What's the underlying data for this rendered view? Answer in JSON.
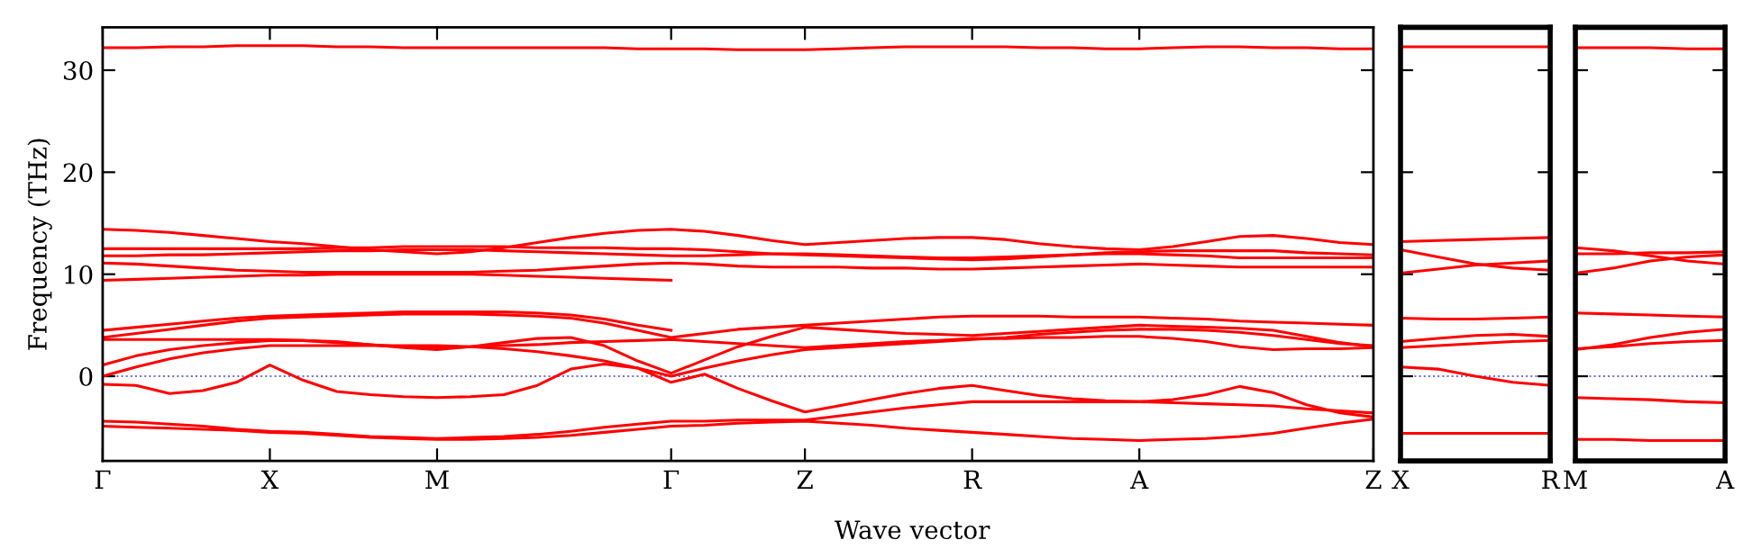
{
  "chart_data": [
    {
      "type": "line",
      "xlabel": "Wave vector",
      "ylabel": "Frequency (THz)",
      "ylim": [
        -8.3,
        34.2
      ],
      "categories": [
        "Γ",
        null,
        null,
        null,
        null,
        "X",
        null,
        null,
        null,
        null,
        "M",
        null,
        null,
        null,
        null,
        null,
        null,
        "Γ",
        null,
        null,
        null,
        "Z",
        null,
        null,
        null,
        null,
        "R",
        null,
        null,
        null,
        null,
        "A",
        null,
        null,
        null,
        null,
        null,
        null,
        "Z"
      ],
      "yticks": [
        0,
        10,
        20,
        30
      ],
      "ref_lines": [
        {
          "axis": "y",
          "value": 0,
          "color": "#6a6ae0",
          "line_style": "dotted"
        }
      ],
      "series": [
        {
          "color": "#ff0000",
          "values": [
            32.2,
            32.2,
            32.3,
            32.3,
            32.4,
            32.4,
            32.4,
            32.3,
            32.3,
            32.2,
            32.2,
            32.2,
            32.2,
            32.2,
            32.2,
            32.2,
            32.1,
            32.1,
            32.1,
            32.0,
            32.0,
            32.0,
            32.1,
            32.2,
            32.3,
            32.3,
            32.3,
            32.3,
            32.2,
            32.2,
            32.1,
            32.1,
            32.2,
            32.3,
            32.3,
            32.2,
            32.2,
            32.1,
            32.1
          ]
        },
        {
          "color": "#ff0000",
          "values": [
            14.4,
            14.3,
            14.1,
            13.8,
            13.5,
            13.2,
            13.0,
            12.7,
            12.4,
            12.2,
            12.0,
            12.2,
            12.6,
            13.1,
            13.6,
            14.0,
            14.3,
            14.4,
            14.2,
            13.8,
            13.3,
            12.9,
            13.1,
            13.3,
            13.5,
            13.6,
            13.6,
            13.4,
            13.0,
            12.7,
            12.5,
            12.4,
            12.7,
            13.2,
            13.7,
            13.8,
            13.5,
            13.1,
            12.9
          ]
        },
        {
          "color": "#ff0000",
          "values": [
            12.5,
            12.5,
            12.5,
            12.5,
            12.5,
            12.5,
            12.5,
            12.6,
            12.6,
            12.7,
            12.7,
            12.7,
            12.7,
            12.6,
            12.6,
            12.6,
            12.5,
            12.5,
            12.4,
            12.2,
            12.0,
            11.9,
            11.8,
            11.7,
            11.6,
            11.5,
            11.4,
            11.5,
            11.7,
            11.9,
            12.1,
            12.2,
            12.3,
            12.3,
            12.3,
            12.3,
            12.1,
            12.0,
            11.9
          ]
        },
        {
          "color": "#ff0000",
          "values": [
            11.8,
            11.8,
            11.9,
            11.9,
            12.0,
            12.1,
            12.2,
            12.3,
            12.3,
            12.4,
            12.4,
            12.4,
            12.3,
            12.2,
            12.1,
            12.0,
            11.9,
            11.8,
            11.8,
            11.9,
            12.0,
            12.0,
            11.9,
            11.8,
            11.7,
            11.6,
            11.6,
            11.7,
            11.8,
            11.9,
            12.0,
            12.0,
            11.9,
            11.8,
            11.6,
            11.6,
            11.6,
            11.6,
            11.6
          ]
        },
        {
          "color": "#ff0000",
          "values": [
            11.1,
            11.0,
            10.8,
            10.6,
            10.4,
            10.3,
            10.2,
            10.2,
            10.2,
            10.2,
            10.2,
            10.2,
            10.3,
            10.4,
            10.6,
            10.8,
            11.0,
            11.1,
            11.0,
            10.8,
            10.7,
            10.7,
            10.7,
            10.6,
            10.6,
            10.5,
            10.5,
            10.6,
            10.7,
            10.8,
            10.9,
            11.0,
            10.9,
            10.8,
            10.7,
            10.7,
            10.7,
            10.7,
            10.7
          ]
        },
        {
          "color": "#ff0000",
          "values": [
            9.4,
            9.5,
            9.6,
            9.7,
            9.8,
            9.9,
            9.9,
            10.0,
            10.0,
            10.0,
            10.0,
            10.0,
            9.9,
            9.8,
            9.7,
            9.6,
            9.5,
            9.4,
            null,
            null,
            null,
            null,
            null,
            null,
            null,
            null,
            null,
            null,
            null,
            null,
            null,
            null,
            null,
            null,
            null,
            null,
            null,
            null,
            null
          ]
        },
        {
          "color": "#ff0000",
          "values": [
            4.5,
            4.8,
            5.1,
            5.4,
            5.7,
            5.9,
            6.0,
            6.1,
            6.2,
            6.3,
            6.3,
            6.3,
            6.3,
            6.2,
            6.0,
            5.6,
            5.0,
            4.5,
            null,
            null,
            null,
            null,
            null,
            null,
            null,
            null,
            null,
            null,
            null,
            null,
            null,
            null,
            null,
            null,
            null,
            null,
            null,
            null,
            null
          ]
        },
        {
          "color": "#ff0000",
          "values": [
            3.8,
            4.2,
            4.6,
            5.0,
            5.4,
            5.7,
            5.8,
            5.9,
            6.0,
            6.1,
            6.1,
            6.1,
            6.0,
            5.9,
            5.7,
            5.2,
            4.5,
            3.8,
            4.2,
            4.6,
            4.8,
            5.0,
            5.2,
            5.4,
            5.6,
            5.8,
            5.9,
            5.9,
            5.9,
            5.8,
            5.8,
            5.8,
            5.7,
            5.6,
            5.4,
            5.3,
            5.2,
            5.1,
            5.0
          ]
        },
        {
          "color": "#ff0000",
          "values": [
            3.6,
            3.6,
            3.6,
            3.6,
            3.6,
            3.6,
            3.5,
            3.3,
            3.1,
            2.9,
            2.8,
            2.9,
            3.0,
            3.1,
            3.3,
            3.4,
            3.5,
            3.6,
            3.4,
            3.2,
            3.0,
            2.8,
            3.0,
            3.2,
            3.4,
            3.5,
            3.7,
            3.7,
            3.8,
            3.8,
            3.9,
            3.9,
            3.7,
            3.4,
            2.9,
            2.6,
            2.7,
            2.7,
            2.8
          ]
        },
        {
          "color": "#ff0000",
          "values": [
            1.1,
            2.0,
            2.6,
            3.0,
            3.3,
            3.5,
            3.5,
            3.4,
            3.1,
            2.8,
            2.6,
            2.9,
            3.3,
            3.7,
            3.8,
            3.0,
            1.5,
            0.3,
            1.6,
            2.9,
            3.9,
            4.8,
            4.6,
            4.4,
            4.2,
            4.1,
            4.0,
            4.2,
            4.4,
            4.6,
            4.8,
            5.0,
            4.9,
            4.8,
            4.7,
            4.5,
            3.9,
            3.3,
            2.9
          ]
        },
        {
          "color": "#ff0000",
          "values": [
            0.0,
            0.9,
            1.7,
            2.3,
            2.7,
            3.0,
            3.0,
            3.0,
            3.0,
            3.0,
            3.0,
            2.9,
            2.7,
            2.4,
            2.0,
            1.5,
            0.8,
            0.0,
            0.8,
            1.5,
            2.1,
            2.6,
            2.8,
            3.0,
            3.2,
            3.4,
            3.6,
            3.8,
            4.1,
            4.3,
            4.5,
            4.6,
            4.6,
            4.5,
            4.3,
            4.0,
            3.6,
            3.2,
            3.0
          ]
        },
        {
          "color": "#ff0000",
          "values": [
            -0.8,
            -0.9,
            -1.7,
            -1.4,
            -0.6,
            1.1,
            -0.4,
            -1.5,
            -1.8,
            -2.0,
            -2.1,
            -2.0,
            -1.8,
            -0.9,
            0.7,
            1.2,
            0.8,
            -0.6,
            0.2,
            -1.2,
            -2.4,
            -3.5,
            -2.9,
            -2.3,
            -1.7,
            -1.2,
            -0.9,
            -1.4,
            -1.9,
            -2.2,
            -2.4,
            -2.5,
            -2.3,
            -1.8,
            -1.0,
            -1.6,
            -2.8,
            -3.6,
            -4.0
          ]
        },
        {
          "color": "#ff0000",
          "values": [
            -4.4,
            -4.5,
            -4.7,
            -4.9,
            -5.2,
            -5.4,
            -5.5,
            -5.7,
            -5.9,
            -6.0,
            -6.1,
            -6.0,
            -5.9,
            -5.7,
            -5.4,
            -5.0,
            -4.7,
            -4.4,
            -4.4,
            -4.3,
            -4.3,
            -4.3,
            -3.9,
            -3.5,
            -3.1,
            -2.8,
            -2.5,
            -2.5,
            -2.5,
            -2.5,
            -2.5,
            -2.5,
            -2.6,
            -2.7,
            -2.8,
            -2.9,
            -3.2,
            -3.4,
            -3.6
          ]
        },
        {
          "color": "#ff0000",
          "values": [
            -4.9,
            -5.0,
            -5.1,
            -5.2,
            -5.3,
            -5.5,
            -5.6,
            -5.8,
            -6.0,
            -6.1,
            -6.2,
            -6.2,
            -6.1,
            -6.0,
            -5.8,
            -5.5,
            -5.2,
            -4.9,
            -4.8,
            -4.6,
            -4.5,
            -4.4,
            -4.6,
            -4.8,
            -5.1,
            -5.3,
            -5.5,
            -5.7,
            -5.9,
            -6.1,
            -6.2,
            -6.3,
            -6.2,
            -6.1,
            -5.9,
            -5.6,
            -5.1,
            -4.6,
            -4.2
          ]
        }
      ]
    },
    {
      "type": "line",
      "ylim": [
        -8.3,
        34.2
      ],
      "tick_labels": "x",
      "categories": [
        "X",
        null,
        null,
        null,
        "R"
      ],
      "yticks": [
        0,
        10,
        20,
        30
      ],
      "ref_lines": [
        {
          "axis": "y",
          "value": 0,
          "color": "#6a6ae0",
          "line_style": "dotted"
        }
      ],
      "series": [
        {
          "color": "#ff0000",
          "values": [
            32.3,
            32.3,
            32.3,
            32.3,
            32.3
          ]
        },
        {
          "color": "#ff0000",
          "values": [
            13.2,
            13.3,
            13.4,
            13.5,
            13.6
          ]
        },
        {
          "color": "#ff0000",
          "values": [
            12.4,
            11.7,
            11.0,
            10.6,
            10.4
          ]
        },
        {
          "color": "#ff0000",
          "values": [
            10.1,
            10.5,
            10.9,
            11.1,
            11.3
          ]
        },
        {
          "color": "#ff0000",
          "values": [
            5.7,
            5.6,
            5.6,
            5.7,
            5.8
          ]
        },
        {
          "color": "#ff0000",
          "values": [
            3.4,
            3.7,
            4.0,
            4.1,
            3.9
          ]
        },
        {
          "color": "#ff0000",
          "values": [
            2.8,
            3.0,
            3.2,
            3.4,
            3.5
          ]
        },
        {
          "color": "#ff0000",
          "values": [
            0.9,
            0.7,
            0.0,
            -0.6,
            -0.9
          ]
        },
        {
          "color": "#ff0000",
          "values": [
            -5.6,
            -5.6,
            -5.6,
            -5.6,
            -5.6
          ]
        }
      ]
    },
    {
      "type": "line",
      "ylim": [
        -8.3,
        34.2
      ],
      "tick_labels": "x",
      "categories": [
        "M",
        null,
        null,
        null,
        "A"
      ],
      "yticks": [
        0,
        10,
        20,
        30
      ],
      "ref_lines": [
        {
          "axis": "y",
          "value": 0,
          "color": "#6a6ae0",
          "line_style": "dotted"
        }
      ],
      "series": [
        {
          "color": "#ff0000",
          "values": [
            32.2,
            32.2,
            32.2,
            32.1,
            32.1
          ]
        },
        {
          "color": "#ff0000",
          "values": [
            12.6,
            12.3,
            11.8,
            11.3,
            11.0
          ]
        },
        {
          "color": "#ff0000",
          "values": [
            12.0,
            12.0,
            12.1,
            12.1,
            12.2
          ]
        },
        {
          "color": "#ff0000",
          "values": [
            10.1,
            10.6,
            11.3,
            11.7,
            11.9
          ]
        },
        {
          "color": "#ff0000",
          "values": [
            6.2,
            6.1,
            6.0,
            5.9,
            5.8
          ]
        },
        {
          "color": "#ff0000",
          "values": [
            2.6,
            3.1,
            3.8,
            4.3,
            4.6
          ]
        },
        {
          "color": "#ff0000",
          "values": [
            2.7,
            2.9,
            3.2,
            3.4,
            3.5
          ]
        },
        {
          "color": "#ff0000",
          "values": [
            -2.1,
            -2.2,
            -2.3,
            -2.5,
            -2.6
          ]
        },
        {
          "color": "#ff0000",
          "values": [
            -6.2,
            -6.2,
            -6.3,
            -6.3,
            -6.3
          ]
        }
      ]
    }
  ]
}
